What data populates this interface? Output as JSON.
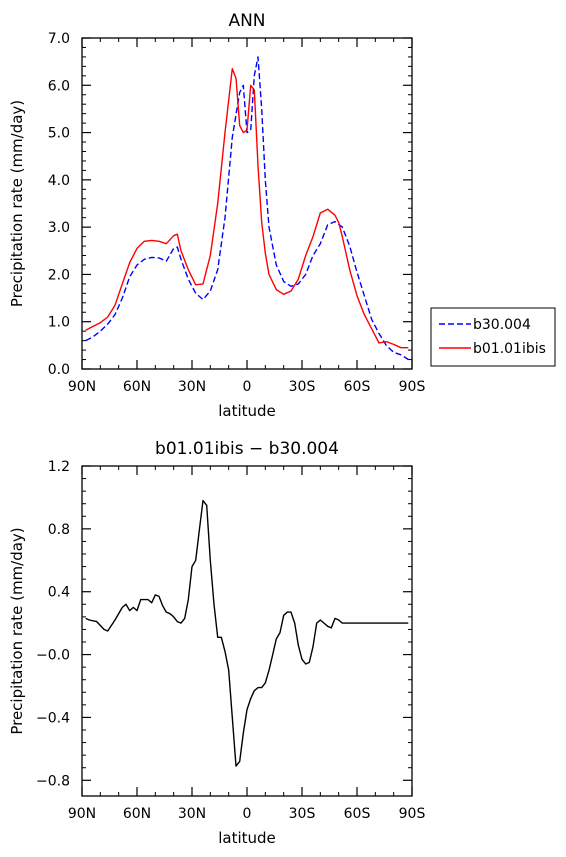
{
  "chart_data": [
    {
      "type": "line",
      "title": "ANN",
      "xlabel": "latitude",
      "ylabel": "Precipitation rate (mm/day)",
      "xlim": [
        90,
        -90
      ],
      "ylim": [
        0,
        7
      ],
      "x_ticks": [
        90,
        60,
        30,
        0,
        -30,
        -60,
        -90
      ],
      "x_tick_labels": [
        "90N",
        "60N",
        "30N",
        "0",
        "30S",
        "60S",
        "90S"
      ],
      "y_ticks": [
        0,
        1,
        2,
        3,
        4,
        5,
        6,
        7
      ],
      "y_tick_labels": [
        "0.0",
        "1.0",
        "2.0",
        "3.0",
        "4.0",
        "5.0",
        "6.0",
        "7.0"
      ],
      "legend_position": "right",
      "series": [
        {
          "name": "b30.004",
          "color": "#0000ff",
          "dash": "dashed",
          "x": [
            88,
            84,
            80,
            76,
            72,
            68,
            64,
            60,
            56,
            52,
            48,
            44,
            40,
            38,
            36,
            32,
            28,
            24,
            20,
            16,
            12,
            8,
            4,
            2,
            0,
            -2,
            -4,
            -6,
            -8,
            -10,
            -12,
            -16,
            -20,
            -24,
            -28,
            -32,
            -36,
            -40,
            -44,
            -48,
            -52,
            -56,
            -60,
            -64,
            -68,
            -72,
            -76,
            -80,
            -84,
            -88
          ],
          "y": [
            0.6,
            0.68,
            0.8,
            0.95,
            1.15,
            1.5,
            1.95,
            2.2,
            2.32,
            2.36,
            2.35,
            2.28,
            2.55,
            2.58,
            2.32,
            1.9,
            1.6,
            1.47,
            1.65,
            2.1,
            3.2,
            4.9,
            5.85,
            6.0,
            5.0,
            5.05,
            6.2,
            6.6,
            5.5,
            4.0,
            3.0,
            2.2,
            1.85,
            1.75,
            1.8,
            2.0,
            2.4,
            2.65,
            3.05,
            3.12,
            3.0,
            2.6,
            2.05,
            1.55,
            1.05,
            0.75,
            0.5,
            0.35,
            0.3,
            0.2
          ]
        },
        {
          "name": "b01.01ibis",
          "color": "#ff0000",
          "dash": "solid",
          "x": [
            88,
            84,
            80,
            76,
            72,
            68,
            64,
            60,
            56,
            52,
            48,
            44,
            40,
            38,
            36,
            32,
            28,
            24,
            20,
            16,
            12,
            8,
            6,
            4,
            2,
            0,
            -2,
            -4,
            -6,
            -8,
            -10,
            -12,
            -16,
            -20,
            -24,
            -28,
            -32,
            -36,
            -40,
            -44,
            -48,
            -50,
            -52,
            -56,
            -60,
            -64,
            -68,
            -72,
            -76,
            -80,
            -84,
            -88
          ],
          "y": [
            0.82,
            0.9,
            0.98,
            1.1,
            1.35,
            1.8,
            2.25,
            2.55,
            2.7,
            2.72,
            2.7,
            2.65,
            2.82,
            2.85,
            2.5,
            2.1,
            1.78,
            1.8,
            2.4,
            3.5,
            5.0,
            6.35,
            6.15,
            5.15,
            5.0,
            5.05,
            6.0,
            5.9,
            4.3,
            3.1,
            2.45,
            2.0,
            1.68,
            1.58,
            1.65,
            1.9,
            2.4,
            2.8,
            3.3,
            3.38,
            3.25,
            3.1,
            2.8,
            2.1,
            1.55,
            1.15,
            0.85,
            0.55,
            0.58,
            0.52,
            0.45,
            0.45
          ]
        }
      ]
    },
    {
      "type": "line",
      "title": "b01.01ibis − b30.004",
      "xlabel": "latitude",
      "ylabel": "Precipitation rate (mm/day)",
      "xlim": [
        90,
        -90
      ],
      "ylim": [
        -0.9,
        1.2
      ],
      "x_ticks": [
        90,
        60,
        30,
        0,
        -30,
        -60,
        -90
      ],
      "x_tick_labels": [
        "90N",
        "60N",
        "30N",
        "0",
        "30S",
        "60S",
        "90S"
      ],
      "y_ticks": [
        -0.8,
        -0.4,
        0,
        0.4,
        0.8,
        1.2
      ],
      "y_tick_labels": [
        "−0.8",
        "−0.4",
        "−0.0",
        "0.4",
        "0.8",
        "1.2"
      ],
      "series": [
        {
          "name": "",
          "color": "#000000",
          "dash": "solid",
          "x": [
            88,
            86,
            82,
            78,
            76,
            72,
            68,
            66,
            64,
            62,
            60,
            58,
            54,
            52,
            50,
            48,
            46,
            44,
            42,
            40,
            38,
            36,
            34,
            32,
            30,
            28,
            26,
            24,
            22,
            20,
            18,
            16,
            14,
            12,
            10,
            8,
            6,
            4,
            2,
            0,
            -2,
            -4,
            -6,
            -8,
            -10,
            -12,
            -14,
            -16,
            -18,
            -20,
            -22,
            -24,
            -26,
            -28,
            -30,
            -32,
            -34,
            -36,
            -38,
            -40,
            -42,
            -44,
            -46,
            -48,
            -50,
            -52,
            -54,
            -56,
            -58,
            -60,
            -62,
            -64,
            -66,
            -68,
            -70,
            -72,
            -74,
            -76,
            -78,
            -80,
            -82,
            -84,
            -86,
            -88
          ],
          "y": [
            0.23,
            0.22,
            0.21,
            0.16,
            0.15,
            0.22,
            0.3,
            0.32,
            0.28,
            0.3,
            0.28,
            0.35,
            0.35,
            0.33,
            0.38,
            0.37,
            0.31,
            0.27,
            0.26,
            0.24,
            0.21,
            0.2,
            0.23,
            0.35,
            0.56,
            0.6,
            0.79,
            0.98,
            0.95,
            0.6,
            0.32,
            0.11,
            0.11,
            0.02,
            -0.1,
            -0.4,
            -0.71,
            -0.68,
            -0.5,
            -0.35,
            -0.28,
            -0.23,
            -0.21,
            -0.21,
            -0.18,
            -0.1,
            0.0,
            0.1,
            0.14,
            0.25,
            0.27,
            0.27,
            0.2,
            0.06,
            -0.03,
            -0.06,
            -0.05,
            0.05,
            0.2,
            0.22,
            0.2,
            0.18,
            0.17,
            0.23,
            0.22,
            0.2,
            0.2,
            0.2,
            0.2,
            0.2,
            0.2,
            0.2,
            0.2,
            0.2,
            0.2,
            0.2,
            0.2,
            0.2,
            0.2,
            0.2,
            0.2,
            0.2,
            0.2,
            0.2
          ]
        }
      ]
    }
  ]
}
